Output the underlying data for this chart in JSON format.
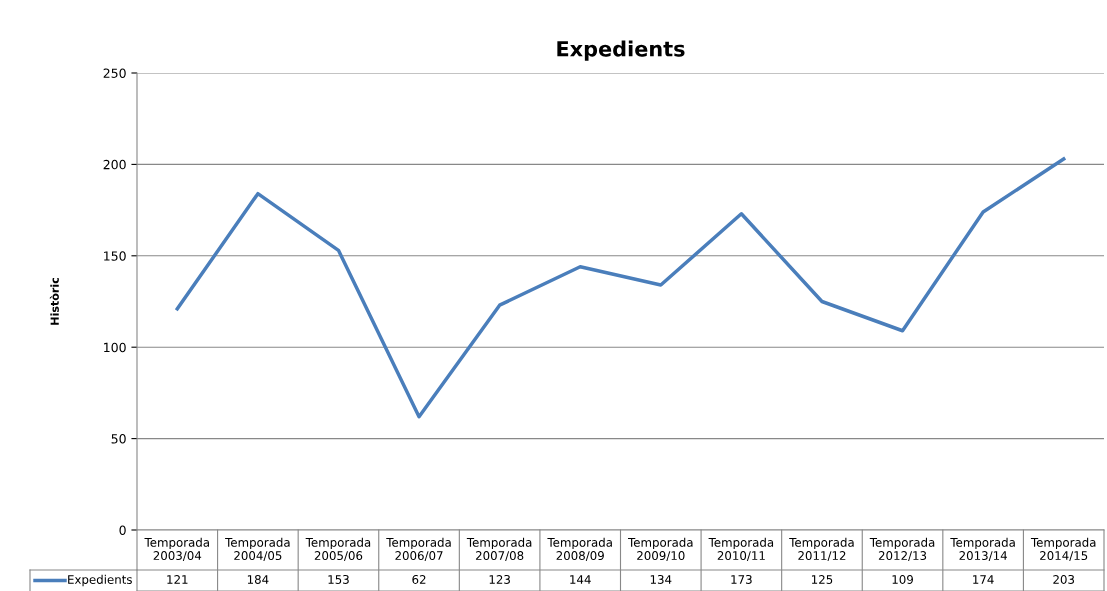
{
  "chart_data": {
    "type": "line",
    "title": "Expedients",
    "ylabel": "Històric",
    "categories": [
      "Temporada 2003/04",
      "Temporada 2004/05",
      "Temporada 2005/06",
      "Temporada 2006/07",
      "Temporada 2007/08",
      "Temporada 2008/09",
      "Temporada 2009/10",
      "Temporada 2010/11",
      "Temporada 2011/12",
      "Temporada 2012/13",
      "Temporada 2013/14",
      "Temporada 2014/15"
    ],
    "series": [
      {
        "name": "Expedients",
        "color": "#4a7ebb",
        "values": [
          121,
          184,
          153,
          62,
          123,
          144,
          134,
          173,
          125,
          109,
          174,
          203
        ]
      }
    ],
    "ylim": [
      0,
      250
    ],
    "yticks": [
      0,
      50,
      100,
      150,
      200,
      250
    ],
    "grid": "y",
    "data_labels": true,
    "legend": "bottom",
    "marker": "none",
    "line_style": "solid"
  }
}
